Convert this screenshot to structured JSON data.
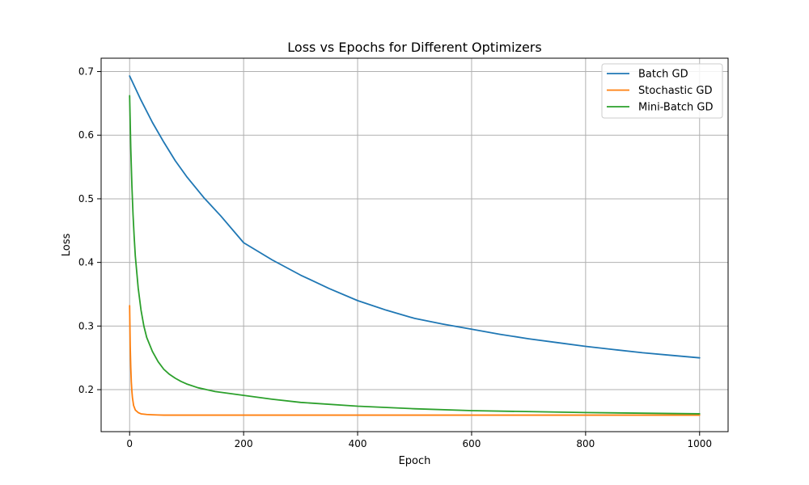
{
  "chart_data": {
    "type": "line",
    "title": "Loss vs Epochs for Different Optimizers",
    "xlabel": "Epoch",
    "ylabel": "Loss",
    "xlim": [
      -50,
      1050
    ],
    "ylim": [
      0.134,
      0.721
    ],
    "xticks": [
      0,
      200,
      400,
      600,
      800,
      1000
    ],
    "yticks": [
      0.2,
      0.3,
      0.4,
      0.5,
      0.6,
      0.7
    ],
    "xtick_labels": [
      "0",
      "200",
      "400",
      "600",
      "800",
      "1000"
    ],
    "ytick_labels": [
      "0.2",
      "0.3",
      "0.4",
      "0.5",
      "0.6",
      "0.7"
    ],
    "grid": true,
    "legend": "top-right",
    "series": [
      {
        "name": "Batch GD",
        "color": "#1f77b4",
        "x": [
          0,
          20,
          40,
          60,
          80,
          100,
          130,
          160,
          200,
          250,
          300,
          350,
          400,
          450,
          500,
          550,
          600,
          650,
          700,
          750,
          800,
          850,
          900,
          950,
          1000
        ],
        "y": [
          0.693,
          0.655,
          0.62,
          0.589,
          0.56,
          0.535,
          0.502,
          0.473,
          0.431,
          0.404,
          0.38,
          0.359,
          0.34,
          0.325,
          0.312,
          0.303,
          0.295,
          0.287,
          0.28,
          0.274,
          0.268,
          0.263,
          0.258,
          0.254,
          0.25
        ]
      },
      {
        "name": "Stochastic GD",
        "color": "#ff7f0e",
        "x": [
          0,
          1,
          2,
          3,
          4,
          5,
          7,
          10,
          15,
          20,
          30,
          40,
          50,
          60,
          80,
          100,
          200,
          400,
          600,
          800,
          1000
        ],
        "y": [
          0.332,
          0.27,
          0.235,
          0.212,
          0.197,
          0.187,
          0.175,
          0.168,
          0.164,
          0.162,
          0.161,
          0.1605,
          0.1602,
          0.16,
          0.16,
          0.16,
          0.16,
          0.16,
          0.16,
          0.16,
          0.16
        ]
      },
      {
        "name": "Mini-Batch GD",
        "color": "#2ca02c",
        "x": [
          0,
          2,
          4,
          6,
          8,
          10,
          15,
          20,
          25,
          30,
          40,
          50,
          60,
          70,
          80,
          90,
          100,
          120,
          150,
          200,
          250,
          300,
          400,
          500,
          600,
          800,
          1000
        ],
        "y": [
          0.662,
          0.58,
          0.52,
          0.475,
          0.44,
          0.41,
          0.36,
          0.325,
          0.3,
          0.282,
          0.26,
          0.244,
          0.232,
          0.224,
          0.218,
          0.213,
          0.209,
          0.203,
          0.197,
          0.191,
          0.185,
          0.18,
          0.174,
          0.17,
          0.167,
          0.164,
          0.162
        ]
      }
    ]
  }
}
